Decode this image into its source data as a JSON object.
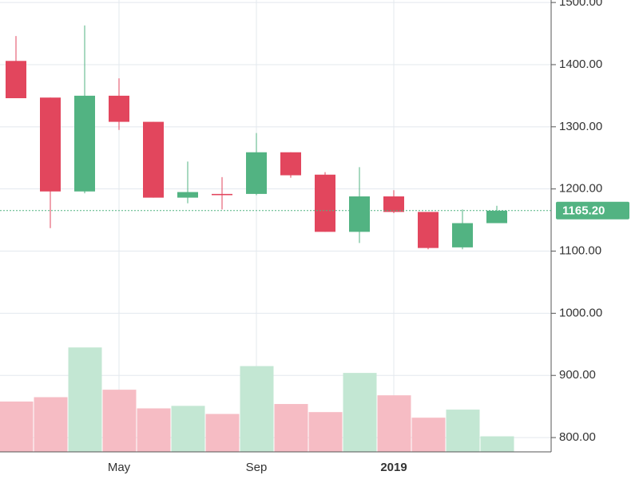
{
  "chart_data": {
    "type": "candlestick",
    "categories": [
      null,
      null,
      null,
      "May",
      null,
      null,
      null,
      "Sep",
      null,
      null,
      null,
      "2019",
      null,
      null,
      null
    ],
    "open": [
      1406,
      1347,
      1196,
      1350,
      1308,
      1186,
      1192,
      1192,
      1259,
      1223,
      1131,
      1188,
      1163,
      1106,
      1145
    ],
    "high": [
      1446,
      1347,
      1463,
      1378,
      1308,
      1244,
      1219,
      1290,
      1259,
      1227,
      1235,
      1198,
      1163,
      1167,
      1173
    ],
    "low": [
      1346,
      1137,
      1193,
      1295,
      1186,
      1177,
      1167,
      1190,
      1218,
      1131,
      1113,
      1161,
      1103,
      1103,
      1145
    ],
    "close": [
      1346,
      1196,
      1350,
      1308,
      1186,
      1195,
      1190,
      1259,
      1222,
      1131,
      1188,
      1163,
      1105,
      1145,
      1165
    ],
    "volume": [
      858,
      865,
      945,
      877,
      847,
      851,
      838,
      915,
      854,
      841,
      904,
      868,
      832,
      845,
      802
    ],
    "up_color": "#52b382",
    "down_color": "#e2465d",
    "up_volume_color": "#c3e7d3",
    "down_volume_color": "#f6bcc4",
    "last_price": {
      "value": 1165.2,
      "label": "1165.20"
    },
    "ylim": [
      777,
      1504
    ],
    "yticks": [
      {
        "value": 800,
        "label": "800.00"
      },
      {
        "value": 900,
        "label": "900.00"
      },
      {
        "value": 1000,
        "label": "1000.00"
      },
      {
        "value": 1100,
        "label": "1100.00"
      },
      {
        "value": 1200,
        "label": "1200.00"
      },
      {
        "value": 1300,
        "label": "1300.00"
      },
      {
        "value": 1400,
        "label": "1400.00"
      },
      {
        "value": 1500,
        "label": "1500.00"
      }
    ],
    "grid": true
  }
}
